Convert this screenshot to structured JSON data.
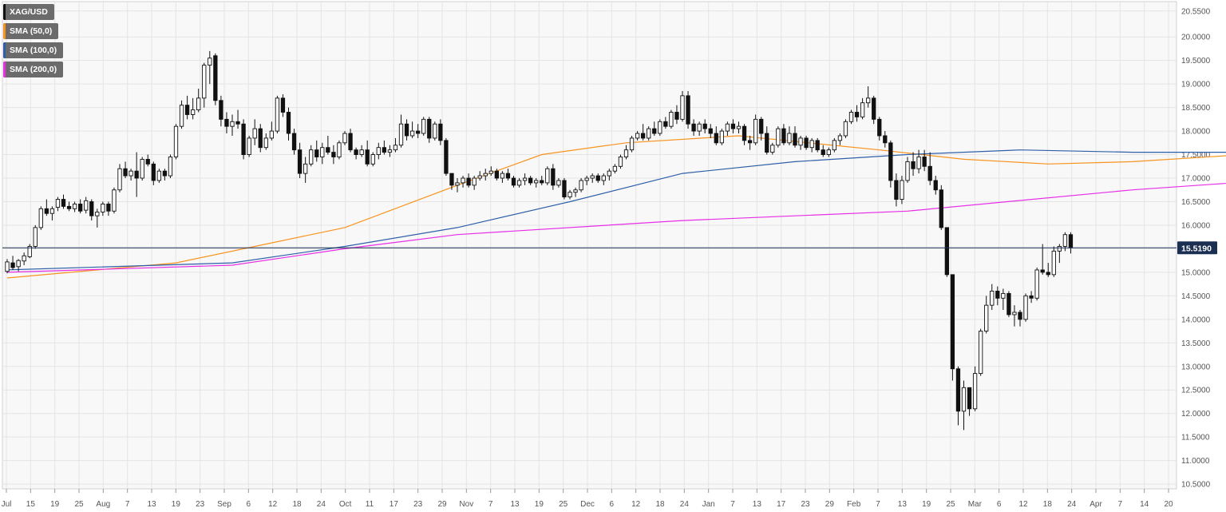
{
  "legend": [
    {
      "label": "XAG/USD",
      "color": "#111111"
    },
    {
      "label": "SMA (50,0)",
      "color": "#f7931e"
    },
    {
      "label": "SMA (100,0)",
      "color": "#2e5fa8"
    },
    {
      "label": "SMA (200,0)",
      "color": "#e62ee6"
    }
  ],
  "chart_data": {
    "type": "candlestick",
    "symbol": "XAG/USD",
    "x_tick_labels": [
      "Jul",
      "15",
      "19",
      "25",
      "Aug",
      "7",
      "13",
      "19",
      "23",
      "Sep",
      "6",
      "12",
      "18",
      "24",
      "Oct",
      "11",
      "17",
      "23",
      "29",
      "Nov",
      "7",
      "13",
      "19",
      "25",
      "Dec",
      "6",
      "12",
      "18",
      "24",
      "Jan",
      "7",
      "13",
      "17",
      "23",
      "29",
      "Feb",
      "7",
      "13",
      "19",
      "25",
      "Mar",
      "6",
      "12",
      "18",
      "24",
      "Apr",
      "7",
      "14",
      "20"
    ],
    "y_ticks": [
      "20.5500",
      "20.0000",
      "19.5000",
      "19.0000",
      "18.5000",
      "18.0000",
      "17.5000",
      "17.0000",
      "16.5000",
      "16.0000",
      "15.5000",
      "15.0000",
      "14.5000",
      "14.0000",
      "13.5000",
      "13.0000",
      "12.5000",
      "12.0000",
      "11.5000",
      "11.0000",
      "10.5000"
    ],
    "ylim": [
      10.4,
      20.75
    ],
    "current_price": 15.519,
    "current_price_label": "15.5190",
    "grid": true,
    "legend_placement": "top-left",
    "candles_ohlc": [
      [
        15.02,
        15.28,
        14.98,
        15.22
      ],
      [
        15.2,
        15.35,
        15.05,
        15.1
      ],
      [
        15.12,
        15.28,
        15.02,
        15.25
      ],
      [
        15.24,
        15.42,
        15.15,
        15.35
      ],
      [
        15.33,
        15.6,
        15.3,
        15.55
      ],
      [
        15.55,
        16.0,
        15.5,
        15.95
      ],
      [
        15.95,
        16.4,
        15.9,
        16.35
      ],
      [
        16.35,
        16.55,
        16.2,
        16.25
      ],
      [
        16.25,
        16.4,
        16.1,
        16.35
      ],
      [
        16.38,
        16.6,
        16.3,
        16.55
      ],
      [
        16.55,
        16.65,
        16.35,
        16.4
      ],
      [
        16.4,
        16.5,
        16.3,
        16.35
      ],
      [
        16.35,
        16.5,
        16.28,
        16.45
      ],
      [
        16.45,
        16.55,
        16.25,
        16.3
      ],
      [
        16.32,
        16.6,
        16.25,
        16.52
      ],
      [
        16.5,
        16.55,
        16.1,
        16.2
      ],
      [
        16.2,
        16.35,
        15.95,
        16.28
      ],
      [
        16.28,
        16.5,
        16.2,
        16.45
      ],
      [
        16.45,
        16.5,
        16.2,
        16.3
      ],
      [
        16.3,
        16.8,
        16.25,
        16.75
      ],
      [
        16.75,
        17.3,
        16.7,
        17.2
      ],
      [
        17.2,
        17.35,
        17.0,
        17.05
      ],
      [
        17.05,
        17.2,
        16.95,
        17.15
      ],
      [
        17.15,
        17.55,
        16.6,
        17.0
      ],
      [
        17.0,
        17.45,
        16.95,
        17.4
      ],
      [
        17.4,
        17.5,
        17.25,
        17.3
      ],
      [
        17.3,
        17.35,
        16.85,
        16.95
      ],
      [
        16.95,
        17.2,
        16.9,
        17.15
      ],
      [
        17.15,
        17.2,
        16.95,
        17.05
      ],
      [
        17.05,
        17.5,
        17.0,
        17.45
      ],
      [
        17.45,
        18.15,
        17.4,
        18.1
      ],
      [
        18.1,
        18.65,
        18.05,
        18.55
      ],
      [
        18.55,
        18.75,
        18.25,
        18.35
      ],
      [
        18.35,
        18.7,
        18.25,
        18.45
      ],
      [
        18.45,
        18.9,
        18.4,
        18.7
      ],
      [
        18.7,
        19.45,
        18.5,
        19.4
      ],
      [
        19.4,
        19.7,
        19.0,
        19.55
      ],
      [
        19.6,
        19.65,
        18.55,
        18.65
      ],
      [
        18.65,
        18.75,
        18.1,
        18.25
      ],
      [
        18.25,
        18.4,
        17.95,
        18.1
      ],
      [
        18.1,
        18.35,
        17.9,
        18.2
      ],
      [
        18.2,
        18.45,
        18.05,
        18.15
      ],
      [
        18.15,
        18.25,
        17.4,
        17.5
      ],
      [
        17.5,
        17.9,
        17.45,
        17.85
      ],
      [
        17.85,
        18.25,
        17.7,
        18.05
      ],
      [
        18.05,
        18.15,
        17.55,
        17.65
      ],
      [
        17.65,
        17.95,
        17.6,
        17.85
      ],
      [
        17.85,
        18.2,
        17.8,
        18.0
      ],
      [
        18.0,
        18.75,
        17.95,
        18.7
      ],
      [
        18.7,
        18.78,
        18.3,
        18.4
      ],
      [
        18.4,
        18.5,
        17.8,
        17.95
      ],
      [
        17.95,
        18.05,
        17.5,
        17.6
      ],
      [
        17.6,
        17.75,
        17.0,
        17.1
      ],
      [
        17.1,
        17.45,
        16.9,
        17.3
      ],
      [
        17.3,
        17.7,
        17.25,
        17.6
      ],
      [
        17.6,
        17.8,
        17.35,
        17.45
      ],
      [
        17.45,
        17.75,
        17.3,
        17.65
      ],
      [
        17.65,
        17.9,
        17.5,
        17.55
      ],
      [
        17.55,
        17.7,
        17.3,
        17.45
      ],
      [
        17.45,
        17.8,
        17.4,
        17.75
      ],
      [
        17.75,
        18.0,
        17.7,
        17.95
      ],
      [
        17.95,
        18.05,
        17.55,
        17.6
      ],
      [
        17.6,
        17.65,
        17.4,
        17.5
      ],
      [
        17.5,
        17.7,
        17.45,
        17.6
      ],
      [
        17.6,
        17.8,
        17.25,
        17.3
      ],
      [
        17.3,
        17.55,
        17.25,
        17.5
      ],
      [
        17.5,
        17.75,
        17.4,
        17.65
      ],
      [
        17.65,
        17.8,
        17.5,
        17.55
      ],
      [
        17.55,
        17.7,
        17.45,
        17.6
      ],
      [
        17.6,
        17.85,
        17.55,
        17.7
      ],
      [
        17.7,
        18.35,
        17.65,
        18.15
      ],
      [
        18.15,
        18.25,
        17.8,
        17.9
      ],
      [
        17.9,
        18.2,
        17.85,
        18.0
      ],
      [
        18.0,
        18.15,
        17.85,
        17.95
      ],
      [
        17.95,
        18.3,
        17.9,
        18.25
      ],
      [
        18.25,
        18.3,
        17.75,
        17.85
      ],
      [
        17.85,
        18.2,
        17.8,
        18.15
      ],
      [
        18.15,
        18.25,
        17.7,
        17.8
      ],
      [
        17.8,
        17.85,
        17.05,
        17.1
      ],
      [
        17.1,
        17.1,
        16.75,
        16.85
      ],
      [
        16.85,
        17.0,
        16.7,
        16.9
      ],
      [
        16.9,
        17.05,
        16.8,
        17.0
      ],
      [
        17.0,
        17.1,
        16.8,
        16.85
      ],
      [
        16.85,
        17.05,
        16.75,
        17.0
      ],
      [
        17.0,
        17.15,
        16.95,
        17.05
      ],
      [
        17.05,
        17.2,
        16.95,
        17.1
      ],
      [
        17.1,
        17.25,
        17.05,
        17.15
      ],
      [
        17.15,
        17.2,
        16.95,
        17.0
      ],
      [
        17.0,
        17.15,
        16.9,
        17.1
      ],
      [
        17.1,
        17.2,
        16.95,
        17.0
      ],
      [
        17.0,
        17.05,
        16.8,
        16.85
      ],
      [
        16.85,
        17.0,
        16.8,
        16.95
      ],
      [
        16.95,
        17.1,
        16.85,
        17.0
      ],
      [
        17.0,
        17.05,
        16.85,
        16.9
      ],
      [
        16.9,
        17.0,
        16.8,
        16.95
      ],
      [
        16.95,
        17.05,
        16.85,
        16.9
      ],
      [
        16.9,
        17.25,
        16.85,
        17.2
      ],
      [
        17.2,
        17.3,
        16.75,
        16.85
      ],
      [
        16.85,
        17.0,
        16.8,
        16.95
      ],
      [
        16.95,
        17.0,
        16.55,
        16.6
      ],
      [
        16.6,
        16.75,
        16.55,
        16.7
      ],
      [
        16.7,
        16.8,
        16.6,
        16.75
      ],
      [
        16.75,
        17.0,
        16.7,
        16.95
      ],
      [
        16.95,
        17.05,
        16.85,
        17.0
      ],
      [
        17.0,
        17.1,
        16.9,
        17.05
      ],
      [
        17.05,
        17.1,
        16.9,
        16.95
      ],
      [
        16.95,
        17.1,
        16.85,
        17.05
      ],
      [
        17.05,
        17.2,
        16.95,
        17.15
      ],
      [
        17.15,
        17.3,
        17.1,
        17.25
      ],
      [
        17.25,
        17.5,
        17.2,
        17.45
      ],
      [
        17.45,
        17.7,
        17.4,
        17.6
      ],
      [
        17.6,
        17.9,
        17.55,
        17.85
      ],
      [
        17.85,
        18.0,
        17.8,
        17.95
      ],
      [
        17.95,
        18.15,
        17.8,
        17.85
      ],
      [
        17.85,
        18.1,
        17.8,
        18.05
      ],
      [
        18.05,
        18.2,
        17.9,
        17.95
      ],
      [
        17.95,
        18.25,
        17.9,
        18.2
      ],
      [
        18.2,
        18.3,
        18.05,
        18.1
      ],
      [
        18.1,
        18.45,
        18.05,
        18.4
      ],
      [
        18.4,
        18.55,
        18.15,
        18.25
      ],
      [
        18.25,
        18.85,
        18.2,
        18.75
      ],
      [
        18.75,
        18.85,
        18.05,
        18.15
      ],
      [
        18.15,
        18.25,
        17.9,
        18.0
      ],
      [
        18.0,
        18.2,
        17.9,
        18.15
      ],
      [
        18.15,
        18.25,
        17.95,
        18.05
      ],
      [
        18.05,
        18.15,
        17.85,
        17.95
      ],
      [
        17.95,
        18.1,
        17.7,
        17.75
      ],
      [
        17.75,
        18.05,
        17.7,
        18.0
      ],
      [
        18.0,
        18.2,
        17.9,
        18.15
      ],
      [
        18.15,
        18.25,
        17.95,
        18.05
      ],
      [
        18.05,
        18.2,
        17.95,
        18.1
      ],
      [
        18.1,
        18.15,
        17.7,
        17.8
      ],
      [
        17.8,
        17.9,
        17.6,
        17.75
      ],
      [
        17.75,
        18.35,
        17.7,
        18.25
      ],
      [
        18.25,
        18.3,
        17.8,
        17.95
      ],
      [
        17.95,
        18.1,
        17.5,
        17.55
      ],
      [
        17.55,
        17.75,
        17.5,
        17.7
      ],
      [
        17.7,
        18.1,
        17.65,
        18.05
      ],
      [
        18.05,
        18.15,
        17.7,
        17.75
      ],
      [
        17.75,
        18.1,
        17.7,
        17.95
      ],
      [
        17.95,
        18.1,
        17.65,
        17.7
      ],
      [
        17.7,
        17.9,
        17.6,
        17.85
      ],
      [
        17.85,
        17.9,
        17.6,
        17.65
      ],
      [
        17.65,
        17.85,
        17.55,
        17.8
      ],
      [
        17.8,
        17.85,
        17.55,
        17.6
      ],
      [
        17.6,
        17.7,
        17.45,
        17.5
      ],
      [
        17.5,
        17.65,
        17.45,
        17.6
      ],
      [
        17.6,
        17.85,
        17.55,
        17.8
      ],
      [
        17.8,
        17.95,
        17.7,
        17.9
      ],
      [
        17.9,
        18.25,
        17.85,
        18.2
      ],
      [
        18.2,
        18.45,
        18.15,
        18.4
      ],
      [
        18.4,
        18.55,
        18.2,
        18.3
      ],
      [
        18.3,
        18.7,
        18.25,
        18.6
      ],
      [
        18.6,
        18.95,
        18.5,
        18.7
      ],
      [
        18.7,
        18.75,
        18.15,
        18.25
      ],
      [
        18.25,
        18.3,
        17.8,
        17.9
      ],
      [
        17.9,
        18.0,
        17.65,
        17.75
      ],
      [
        17.75,
        17.8,
        16.8,
        16.95
      ],
      [
        16.95,
        17.1,
        16.4,
        16.55
      ],
      [
        16.55,
        17.05,
        16.45,
        16.95
      ],
      [
        16.95,
        17.45,
        16.9,
        17.35
      ],
      [
        17.35,
        17.55,
        17.05,
        17.2
      ],
      [
        17.2,
        17.6,
        17.1,
        17.45
      ],
      [
        17.45,
        17.6,
        17.15,
        17.25
      ],
      [
        17.25,
        17.55,
        16.85,
        16.95
      ],
      [
        16.95,
        17.05,
        16.65,
        16.75
      ],
      [
        16.75,
        16.85,
        15.9,
        15.95
      ],
      [
        15.95,
        15.95,
        14.9,
        14.95
      ],
      [
        14.95,
        14.95,
        12.7,
        12.95
      ],
      [
        12.95,
        13.0,
        11.75,
        12.05
      ],
      [
        12.05,
        12.7,
        11.65,
        12.55
      ],
      [
        12.55,
        12.55,
        11.95,
        12.1
      ],
      [
        12.1,
        13.0,
        12.05,
        12.85
      ],
      [
        12.85,
        13.8,
        12.8,
        13.75
      ],
      [
        13.75,
        14.5,
        13.7,
        14.3
      ],
      [
        14.3,
        14.75,
        14.2,
        14.6
      ],
      [
        14.6,
        14.7,
        14.3,
        14.45
      ],
      [
        14.45,
        14.65,
        14.2,
        14.55
      ],
      [
        14.55,
        14.6,
        14.05,
        14.1
      ],
      [
        14.1,
        14.3,
        13.85,
        14.15
      ],
      [
        14.15,
        14.2,
        13.85,
        14.0
      ],
      [
        14.0,
        14.55,
        13.95,
        14.5
      ],
      [
        14.5,
        14.6,
        14.35,
        14.45
      ],
      [
        14.45,
        15.1,
        14.4,
        15.05
      ],
      [
        15.05,
        15.6,
        14.95,
        15.0
      ],
      [
        15.0,
        15.2,
        14.9,
        14.95
      ],
      [
        14.95,
        15.55,
        14.9,
        15.45
      ],
      [
        15.45,
        15.6,
        15.2,
        15.55
      ],
      [
        15.55,
        15.85,
        15.45,
        15.8
      ],
      [
        15.8,
        15.85,
        15.4,
        15.52
      ]
    ],
    "series": [
      {
        "name": "SMA (50,0)",
        "color": "#f7931e",
        "points": [
          [
            0,
            14.88
          ],
          [
            30,
            15.2
          ],
          [
            60,
            15.95
          ],
          [
            80,
            16.85
          ],
          [
            95,
            17.5
          ],
          [
            110,
            17.75
          ],
          [
            130,
            17.9
          ],
          [
            155,
            17.6
          ],
          [
            170,
            17.4
          ],
          [
            185,
            17.3
          ],
          [
            200,
            17.35
          ],
          [
            220,
            17.5
          ],
          [
            236,
            17.72
          ],
          [
            250,
            17.95
          ],
          [
            262,
            17.6
          ],
          [
            275,
            16.9
          ],
          [
            289,
            16.05
          ]
        ]
      },
      {
        "name": "SMA (100,0)",
        "color": "#2e5fa8",
        "points": [
          [
            0,
            15.05
          ],
          [
            40,
            15.2
          ],
          [
            60,
            15.55
          ],
          [
            80,
            15.95
          ],
          [
            100,
            16.5
          ],
          [
            120,
            17.1
          ],
          [
            140,
            17.35
          ],
          [
            160,
            17.5
          ],
          [
            180,
            17.6
          ],
          [
            200,
            17.55
          ],
          [
            230,
            17.55
          ],
          [
            250,
            17.6
          ],
          [
            262,
            17.45
          ],
          [
            275,
            17.05
          ],
          [
            289,
            16.8
          ]
        ]
      },
      {
        "name": "SMA (200,0)",
        "color": "#e62ee6",
        "points": [
          [
            0,
            15.0
          ],
          [
            40,
            15.15
          ],
          [
            60,
            15.5
          ],
          [
            80,
            15.8
          ],
          [
            120,
            16.1
          ],
          [
            160,
            16.3
          ],
          [
            200,
            16.75
          ],
          [
            230,
            17.0
          ],
          [
            245,
            17.15
          ],
          [
            255,
            17.1
          ],
          [
            270,
            17.05
          ],
          [
            289,
            17.05
          ]
        ]
      }
    ]
  }
}
